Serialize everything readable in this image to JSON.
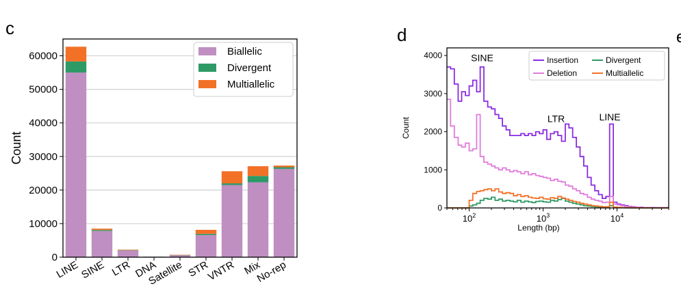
{
  "panels": {
    "c_letter": "c",
    "d_letter": "d",
    "e_letter_partial": "e"
  },
  "colors": {
    "biallelic": "#bf8fc2",
    "divergent": "#2e9a66",
    "multiallelic": "#f27127",
    "insertion": "#8a2be2",
    "deletion": "#e07bdc",
    "divergent_line": "#2e9a66",
    "multiallelic_line": "#f27127"
  },
  "chart_data": [
    {
      "type": "bar",
      "stacked": true,
      "categories": [
        "LINE",
        "SINE",
        "LTR",
        "DNA",
        "Satellite",
        "STR",
        "VNTR",
        "Mix",
        "No-rep"
      ],
      "series": [
        {
          "name": "Biallelic",
          "values": [
            55000,
            7800,
            2000,
            150,
            600,
            6600,
            21500,
            22300,
            26300
          ]
        },
        {
          "name": "Divergent",
          "values": [
            3300,
            300,
            100,
            0,
            50,
            350,
            500,
            1900,
            500
          ]
        },
        {
          "name": "Multiallelic",
          "values": [
            4400,
            400,
            150,
            0,
            50,
            1200,
            3600,
            2900,
            500
          ]
        }
      ],
      "ylabel": "Count",
      "xlabel": "",
      "ylim": [
        0,
        65000
      ],
      "yticks": [
        "0",
        "10000",
        "20000",
        "30000",
        "40000",
        "50000",
        "60000"
      ],
      "grid": "horizontal",
      "legend_position": "top-right"
    },
    {
      "type": "line",
      "step": true,
      "x_scale": "log",
      "xlabel": "Length (bp)",
      "ylabel": "Count",
      "xlim": [
        50,
        50000
      ],
      "ylim": [
        0,
        4200
      ],
      "yticks": [
        "0",
        "1000",
        "2000",
        "3000",
        "4000"
      ],
      "xticks": [
        {
          "value": 100,
          "base": "10",
          "exp": "2"
        },
        {
          "value": 1000,
          "base": "10",
          "exp": "3"
        },
        {
          "value": 10000,
          "base": "10",
          "exp": "4"
        }
      ],
      "legend_position": "top-right",
      "annotations": [
        {
          "text": "SINE",
          "x": 150,
          "y": 3850
        },
        {
          "text": "LTR",
          "x": 1500,
          "y": 2250
        },
        {
          "text": "LINE",
          "x": 8000,
          "y": 2300
        }
      ],
      "series": [
        {
          "name": "Insertion",
          "x": [
            50,
            56,
            63,
            71,
            79,
            89,
            100,
            112,
            126,
            141,
            158,
            178,
            200,
            224,
            251,
            282,
            316,
            355,
            398,
            447,
            501,
            562,
            631,
            708,
            794,
            891,
            1000,
            1122,
            1259,
            1413,
            1585,
            1778,
            1995,
            2239,
            2512,
            2818,
            3162,
            3548,
            3981,
            4467,
            5012,
            5623,
            6310,
            7079,
            7943,
            8913,
            10000,
            11220,
            12589,
            14125,
            15849,
            17783,
            19953,
            22387,
            25119,
            28184,
            31623,
            35481,
            39811,
            44668
          ],
          "values": [
            3700,
            3650,
            3250,
            2800,
            3050,
            2950,
            3200,
            3350,
            3050,
            3700,
            2800,
            2650,
            2600,
            2450,
            2350,
            2150,
            2050,
            1900,
            1900,
            1900,
            1950,
            1900,
            1950,
            1900,
            2000,
            1950,
            2050,
            1800,
            1950,
            2000,
            1900,
            1750,
            2200,
            2100,
            1850,
            1600,
            1350,
            1100,
            800,
            600,
            450,
            350,
            250,
            300,
            2200,
            150,
            100,
            80,
            60,
            40,
            30,
            20,
            20,
            10,
            10,
            10,
            5,
            5,
            5,
            5
          ]
        },
        {
          "name": "Deletion",
          "x": [
            50,
            56,
            63,
            71,
            79,
            89,
            100,
            112,
            126,
            141,
            158,
            178,
            200,
            224,
            251,
            282,
            316,
            355,
            398,
            447,
            501,
            562,
            631,
            708,
            794,
            891,
            1000,
            1122,
            1259,
            1413,
            1585,
            1778,
            1995,
            2239,
            2512,
            2818,
            3162,
            3548,
            3981,
            4467,
            5012,
            5623,
            6310,
            7079,
            7943,
            8913,
            10000,
            11220,
            12589,
            14125,
            15849,
            17783,
            19953,
            22387,
            25119,
            28184,
            31623,
            35481,
            39811,
            44668
          ],
          "values": [
            2850,
            2150,
            1850,
            1650,
            1600,
            1700,
            1500,
            1550,
            2450,
            1350,
            1200,
            1150,
            1100,
            1050,
            1000,
            1050,
            1000,
            950,
            980,
            950,
            900,
            950,
            870,
            900,
            850,
            830,
            800,
            780,
            720,
            750,
            700,
            680,
            600,
            570,
            500,
            450,
            380,
            350,
            280,
            230,
            200,
            180,
            140,
            150,
            300,
            100,
            80,
            60,
            40,
            30,
            25,
            20,
            15,
            10,
            10,
            5,
            5,
            5,
            5,
            5
          ]
        },
        {
          "name": "Divergent",
          "x": [
            50,
            56,
            63,
            71,
            79,
            89,
            100,
            112,
            126,
            141,
            158,
            178,
            200,
            224,
            251,
            282,
            316,
            355,
            398,
            447,
            501,
            562,
            631,
            708,
            794,
            891,
            1000,
            1122,
            1259,
            1413,
            1585,
            1778,
            1995,
            2239,
            2512,
            2818,
            3162,
            3548,
            3981,
            4467,
            5012,
            5623,
            6310,
            7079,
            7943,
            8913,
            10000,
            11220,
            12589,
            14125,
            15849,
            17783,
            19953,
            22387,
            25119,
            28184,
            31623,
            35481,
            39811,
            44668
          ],
          "values": [
            0,
            0,
            0,
            0,
            0,
            0,
            50,
            80,
            120,
            200,
            250,
            230,
            280,
            200,
            230,
            180,
            200,
            180,
            160,
            200,
            150,
            180,
            160,
            140,
            170,
            180,
            160,
            150,
            200,
            180,
            220,
            250,
            180,
            150,
            120,
            100,
            80,
            60,
            50,
            40,
            30,
            25,
            20,
            20,
            60,
            15,
            10,
            8,
            5,
            3,
            2,
            2,
            1,
            1,
            0,
            0,
            0,
            0,
            0,
            0
          ]
        },
        {
          "name": "Multiallelic",
          "x": [
            50,
            56,
            63,
            71,
            79,
            89,
            100,
            112,
            126,
            141,
            158,
            178,
            200,
            224,
            251,
            282,
            316,
            355,
            398,
            447,
            501,
            562,
            631,
            708,
            794,
            891,
            1000,
            1122,
            1259,
            1413,
            1585,
            1778,
            1995,
            2239,
            2512,
            2818,
            3162,
            3548,
            3981,
            4467,
            5012,
            5623,
            6310,
            7079,
            7943,
            8913,
            10000,
            11220,
            12589,
            14125,
            15849,
            17783,
            19953,
            22387,
            25119,
            28184,
            31623,
            35481,
            39811,
            44668
          ],
          "values": [
            0,
            0,
            0,
            0,
            0,
            0,
            200,
            380,
            430,
            450,
            480,
            500,
            450,
            500,
            420,
            380,
            400,
            380,
            320,
            350,
            300,
            320,
            280,
            260,
            250,
            280,
            240,
            230,
            270,
            250,
            300,
            260,
            230,
            200,
            170,
            150,
            120,
            100,
            80,
            60,
            50,
            40,
            30,
            30,
            150,
            20,
            15,
            10,
            8,
            5,
            3,
            2,
            2,
            1,
            1,
            0,
            0,
            0,
            0,
            0
          ]
        }
      ]
    }
  ]
}
